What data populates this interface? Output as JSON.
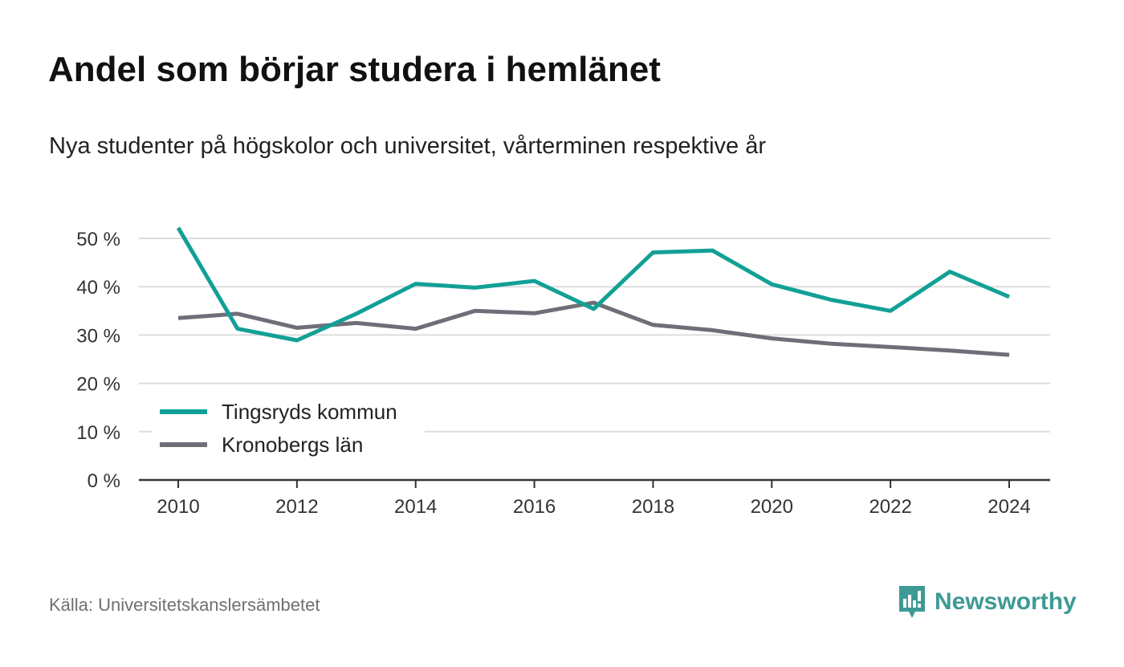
{
  "header": {
    "title": "Andel som börjar studera i hemlänet",
    "subtitle": "Nya studenter på högskolor och universitet, vårterminen respektive år"
  },
  "footer": {
    "source": "Källa: Universitetskanslersämbetet",
    "brand": "Newsworthy"
  },
  "colors": {
    "tingsryd": "#12a096",
    "kronoberg": "#6f6e78",
    "grid": "#dddddd",
    "axis": "#333333",
    "brand": "#3e9a95"
  },
  "icons": {
    "brand_logo": "bar-chart-speech-bubble-icon"
  },
  "chart_data": {
    "type": "line",
    "x": [
      2010,
      2011,
      2012,
      2013,
      2014,
      2015,
      2016,
      2017,
      2018,
      2019,
      2020,
      2021,
      2022,
      2023,
      2024
    ],
    "series": [
      {
        "name": "Tingsryds kommun",
        "values": [
          52.2,
          31.3,
          28.9,
          34.4,
          40.6,
          39.8,
          41.2,
          35.4,
          47.1,
          47.5,
          40.5,
          37.3,
          35.0,
          43.1,
          37.9
        ]
      },
      {
        "name": "Kronobergs län",
        "values": [
          33.5,
          34.4,
          31.5,
          32.5,
          31.3,
          35.0,
          34.5,
          36.7,
          32.1,
          31.0,
          29.3,
          28.2,
          27.5,
          26.8,
          25.9
        ]
      }
    ],
    "xticks": [
      "2010",
      "2012",
      "2014",
      "2016",
      "2018",
      "2020",
      "2022",
      "2024"
    ],
    "yticks": [
      "0 %",
      "10 %",
      "20 %",
      "30 %",
      "40 %",
      "50 %"
    ],
    "xlim": [
      2010,
      2024
    ],
    "ylim": [
      0,
      50
    ],
    "grid": true,
    "legend_position": "bottom-left"
  }
}
